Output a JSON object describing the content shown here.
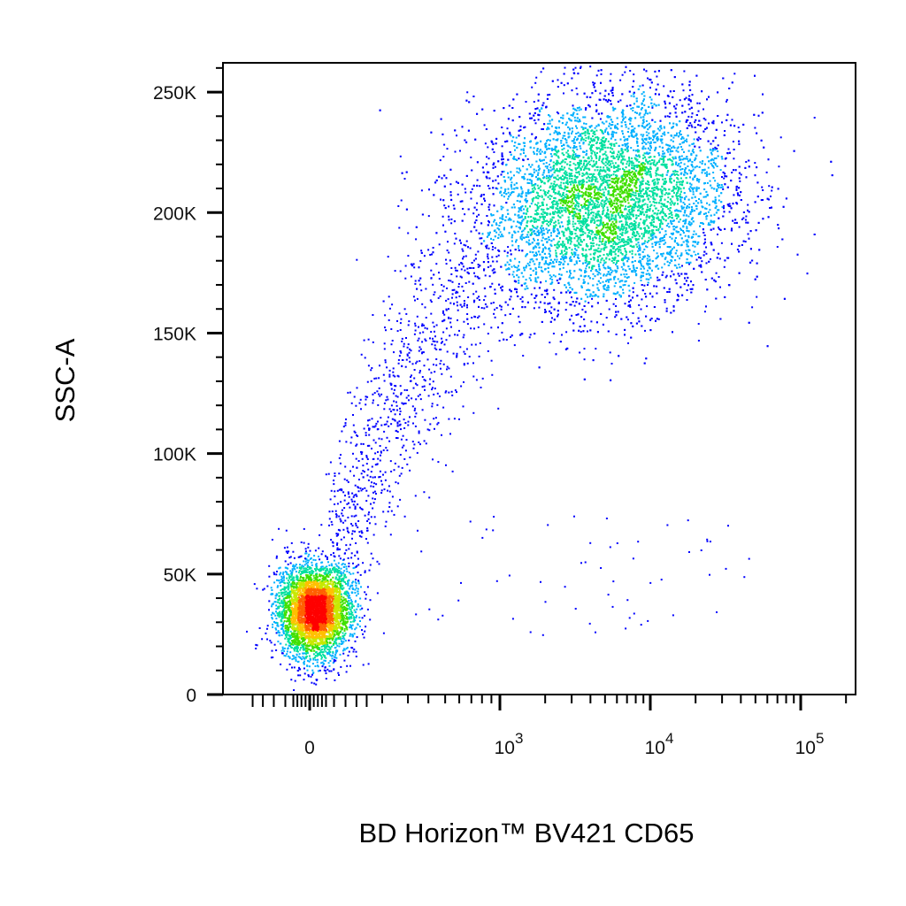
{
  "chart_data": {
    "type": "scatter",
    "style": "density-pseudocolor",
    "xlabel": "BD Horizon™ BV421 CD65",
    "ylabel": "SSC-A",
    "x_scale": "biexponential",
    "x_range": [
      -150,
      200000
    ],
    "y_range": [
      0,
      262144
    ],
    "x_ticks": [
      {
        "value": 0,
        "label": "0"
      },
      {
        "value": 1000,
        "label": "10",
        "exp": "3"
      },
      {
        "value": 10000,
        "label": "10",
        "exp": "4"
      },
      {
        "value": 100000,
        "label": "10",
        "exp": "5"
      }
    ],
    "y_ticks": [
      {
        "value": 0,
        "label": "0"
      },
      {
        "value": 50000,
        "label": "50K"
      },
      {
        "value": 100000,
        "label": "100K"
      },
      {
        "value": 150000,
        "label": "150K"
      },
      {
        "value": 200000,
        "label": "200K"
      },
      {
        "value": 250000,
        "label": "250K"
      }
    ],
    "density_colors": [
      "#0000ff",
      "#00b0ff",
      "#00e0a0",
      "#40e000",
      "#c8e800",
      "#ffc000",
      "#ff6000",
      "#ff0000"
    ],
    "populations": [
      {
        "center_x": 10,
        "center_y": 35000,
        "spread_x": 45,
        "spread_y": 9000,
        "events": 4200
      },
      {
        "center_x": 5000,
        "center_y": 205000,
        "spread_x_log": 0.42,
        "spread_y": 22000,
        "events": 9000
      },
      {
        "center_x": 350,
        "center_y": 110000,
        "spread_x_log": 0.25,
        "spread_y": 35000,
        "events": 900
      }
    ]
  }
}
